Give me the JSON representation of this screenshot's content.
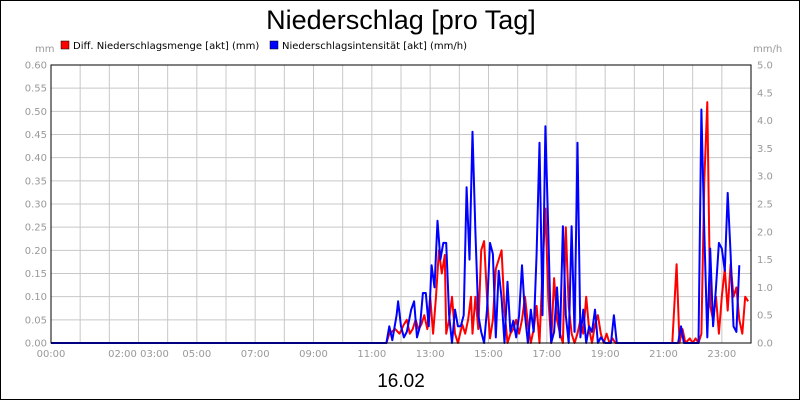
{
  "chart_data": {
    "type": "line",
    "title": "Niederschlag [pro Tag]",
    "date_label": "16.02",
    "y_left": {
      "unit": "mm",
      "ylim": [
        0,
        0.6
      ],
      "ticks": [
        "0.00",
        "0.05",
        "0.10",
        "0.15",
        "0.20",
        "0.25",
        "0.30",
        "0.35",
        "0.40",
        "0.45",
        "0.50",
        "0.55",
        "0.60"
      ]
    },
    "y_right": {
      "unit": "mm/h",
      "ylim": [
        0,
        5.0
      ],
      "ticks": [
        "0.0",
        "0.5",
        "1.0",
        "1.5",
        "2.0",
        "2.5",
        "3.0",
        "3.5",
        "4.0",
        "4.5",
        "5.0"
      ]
    },
    "x_ticks": [
      {
        "h": 0,
        "label": "00:00"
      },
      {
        "h": 3,
        "label": "02:00 03:00"
      },
      {
        "h": 5,
        "label": "05:00"
      },
      {
        "h": 7,
        "label": "07:00"
      },
      {
        "h": 9,
        "label": "09:00"
      },
      {
        "h": 11,
        "label": "11:00"
      },
      {
        "h": 13,
        "label": "13:00"
      },
      {
        "h": 15,
        "label": "15:00"
      },
      {
        "h": 17,
        "label": "17:00"
      },
      {
        "h": 19,
        "label": "19:00"
      },
      {
        "h": 21,
        "label": "21:00"
      },
      {
        "h": 23,
        "label": "23:00"
      }
    ],
    "xlim": [
      0,
      24
    ],
    "grid": true,
    "legend_position": "top-left",
    "series": [
      {
        "name": "Diff. Niederschlagsmenge [akt] (mm)",
        "color": "#ff0000",
        "axis": "left",
        "points": [
          [
            0,
            0
          ],
          [
            11.5,
            0
          ],
          [
            11.6,
            0.02
          ],
          [
            11.8,
            0.03
          ],
          [
            11.95,
            0.02
          ],
          [
            12.1,
            0.04
          ],
          [
            12.2,
            0.05
          ],
          [
            12.3,
            0.02
          ],
          [
            12.4,
            0.03
          ],
          [
            12.5,
            0.05
          ],
          [
            12.6,
            0.03
          ],
          [
            12.7,
            0.04
          ],
          [
            12.8,
            0.06
          ],
          [
            12.9,
            0.03
          ],
          [
            13.0,
            0.1
          ],
          [
            13.1,
            0.02
          ],
          [
            13.2,
            0.1
          ],
          [
            13.3,
            0.2
          ],
          [
            13.4,
            0.15
          ],
          [
            13.5,
            0.19
          ],
          [
            13.55,
            0.02
          ],
          [
            13.65,
            0.05
          ],
          [
            13.75,
            0.1
          ],
          [
            13.85,
            0.02
          ],
          [
            13.95,
            0.0
          ],
          [
            14.1,
            0.04
          ],
          [
            14.2,
            0.02
          ],
          [
            14.3,
            0.05
          ],
          [
            14.4,
            0.1
          ],
          [
            14.45,
            0.02
          ],
          [
            14.55,
            0.1
          ],
          [
            14.65,
            0.03
          ],
          [
            14.75,
            0.2
          ],
          [
            14.85,
            0.22
          ],
          [
            14.95,
            0.1
          ],
          [
            15.05,
            0.01
          ],
          [
            15.15,
            0.05
          ],
          [
            15.25,
            0.16
          ],
          [
            15.35,
            0.18
          ],
          [
            15.45,
            0.2
          ],
          [
            15.55,
            0.07
          ],
          [
            15.65,
            0.0
          ],
          [
            15.75,
            0.02
          ],
          [
            15.85,
            0.03
          ],
          [
            15.95,
            0.05
          ],
          [
            16.05,
            0.02
          ],
          [
            16.15,
            0.05
          ],
          [
            16.25,
            0.1
          ],
          [
            16.35,
            0.04
          ],
          [
            16.45,
            0.0
          ],
          [
            16.55,
            0.03
          ],
          [
            16.65,
            0.08
          ],
          [
            16.75,
            0.0
          ],
          [
            16.85,
            0.16
          ],
          [
            16.95,
            0.29
          ],
          [
            17.05,
            0.1
          ],
          [
            17.15,
            0.0
          ],
          [
            17.25,
            0.14
          ],
          [
            17.35,
            0.05
          ],
          [
            17.45,
            0.02
          ],
          [
            17.55,
            0.0
          ],
          [
            17.65,
            0.25
          ],
          [
            17.75,
            0.08
          ],
          [
            17.85,
            0.02
          ],
          [
            17.95,
            0.0
          ],
          [
            18.05,
            0.02
          ],
          [
            18.15,
            0.05
          ],
          [
            18.25,
            0.02
          ],
          [
            18.35,
            0.1
          ],
          [
            18.45,
            0.03
          ],
          [
            18.55,
            0.0
          ],
          [
            18.65,
            0.04
          ],
          [
            18.75,
            0.06
          ],
          [
            18.85,
            0.02
          ],
          [
            18.95,
            0.0
          ],
          [
            19.05,
            0.02
          ],
          [
            19.15,
            0.0
          ],
          [
            19.25,
            0.01
          ],
          [
            19.35,
            0.0
          ],
          [
            21.3,
            0.0
          ],
          [
            21.45,
            0.17
          ],
          [
            21.55,
            0.0
          ],
          [
            21.65,
            0.03
          ],
          [
            21.75,
            0.0
          ],
          [
            21.9,
            0.01
          ],
          [
            22.0,
            0.0
          ],
          [
            22.1,
            0.01
          ],
          [
            22.2,
            0.0
          ],
          [
            22.3,
            0.02
          ],
          [
            22.4,
            0.35
          ],
          [
            22.5,
            0.52
          ],
          [
            22.6,
            0.08
          ],
          [
            22.7,
            0.05
          ],
          [
            22.8,
            0.1
          ],
          [
            22.9,
            0.02
          ],
          [
            23.0,
            0.1
          ],
          [
            23.1,
            0.16
          ],
          [
            23.2,
            0.07
          ],
          [
            23.3,
            0.17
          ],
          [
            23.4,
            0.1
          ],
          [
            23.5,
            0.12
          ],
          [
            23.6,
            0.05
          ],
          [
            23.7,
            0.02
          ],
          [
            23.8,
            0.1
          ],
          [
            23.9,
            0.09
          ]
        ]
      },
      {
        "name": "Niederschlagsintensität [akt] (mm/h)",
        "color": "#0000ff",
        "axis": "right",
        "points": [
          [
            0,
            0
          ],
          [
            11.5,
            0
          ],
          [
            11.6,
            0.3
          ],
          [
            11.7,
            0.05
          ],
          [
            11.85,
            0.5
          ],
          [
            11.9,
            0.75
          ],
          [
            12.0,
            0.3
          ],
          [
            12.1,
            0.1
          ],
          [
            12.2,
            0.2
          ],
          [
            12.35,
            0.6
          ],
          [
            12.45,
            0.75
          ],
          [
            12.55,
            0.1
          ],
          [
            12.65,
            0.3
          ],
          [
            12.75,
            0.9
          ],
          [
            12.85,
            0.9
          ],
          [
            12.95,
            0.3
          ],
          [
            13.05,
            1.4
          ],
          [
            13.15,
            1.0
          ],
          [
            13.25,
            2.2
          ],
          [
            13.35,
            1.5
          ],
          [
            13.45,
            1.8
          ],
          [
            13.55,
            1.8
          ],
          [
            13.65,
            0.5
          ],
          [
            13.75,
            0.0
          ],
          [
            13.85,
            0.6
          ],
          [
            13.95,
            0.3
          ],
          [
            14.05,
            0.3
          ],
          [
            14.15,
            0.5
          ],
          [
            14.25,
            2.8
          ],
          [
            14.35,
            1.5
          ],
          [
            14.45,
            3.8
          ],
          [
            14.55,
            2.0
          ],
          [
            14.65,
            0.5
          ],
          [
            14.75,
            0.2
          ],
          [
            14.85,
            0.0
          ],
          [
            14.95,
            0.6
          ],
          [
            15.05,
            1.8
          ],
          [
            15.15,
            1.6
          ],
          [
            15.25,
            0.1
          ],
          [
            15.35,
            1.3
          ],
          [
            15.45,
            0.8
          ],
          [
            15.55,
            0.0
          ],
          [
            15.65,
            1.1
          ],
          [
            15.75,
            0.2
          ],
          [
            15.85,
            0.4
          ],
          [
            15.95,
            0.1
          ],
          [
            16.05,
            0.5
          ],
          [
            16.15,
            1.4
          ],
          [
            16.25,
            0.5
          ],
          [
            16.35,
            0.0
          ],
          [
            16.45,
            0.6
          ],
          [
            16.55,
            0.2
          ],
          [
            16.65,
            1.6
          ],
          [
            16.75,
            3.6
          ],
          [
            16.85,
            0.5
          ],
          [
            16.95,
            3.9
          ],
          [
            17.05,
            2.0
          ],
          [
            17.15,
            0.0
          ],
          [
            17.25,
            0.2
          ],
          [
            17.35,
            1.0
          ],
          [
            17.45,
            0.1
          ],
          [
            17.55,
            2.1
          ],
          [
            17.65,
            0.5
          ],
          [
            17.75,
            0.0
          ],
          [
            17.85,
            2.1
          ],
          [
            17.95,
            0.2
          ],
          [
            18.05,
            3.6
          ],
          [
            18.15,
            0.1
          ],
          [
            18.25,
            0.6
          ],
          [
            18.35,
            0.0
          ],
          [
            18.45,
            0.3
          ],
          [
            18.55,
            0.2
          ],
          [
            18.65,
            0.6
          ],
          [
            18.75,
            0.0
          ],
          [
            18.85,
            0.1
          ],
          [
            19.0,
            0.0
          ],
          [
            19.2,
            0.0
          ],
          [
            19.3,
            0.5
          ],
          [
            19.4,
            0.0
          ],
          [
            21.5,
            0.0
          ],
          [
            21.6,
            0.3
          ],
          [
            21.7,
            0.0
          ],
          [
            21.9,
            0.0
          ],
          [
            22.0,
            0.0
          ],
          [
            22.1,
            0.0
          ],
          [
            22.2,
            0.0
          ],
          [
            22.3,
            4.2
          ],
          [
            22.4,
            2.0
          ],
          [
            22.5,
            0.1
          ],
          [
            22.6,
            1.7
          ],
          [
            22.7,
            0.3
          ],
          [
            22.8,
            1.0
          ],
          [
            22.9,
            1.8
          ],
          [
            23.0,
            1.7
          ],
          [
            23.1,
            1.3
          ],
          [
            23.2,
            2.7
          ],
          [
            23.3,
            1.6
          ],
          [
            23.4,
            0.3
          ],
          [
            23.5,
            0.2
          ],
          [
            23.6,
            1.4
          ]
        ]
      }
    ]
  }
}
